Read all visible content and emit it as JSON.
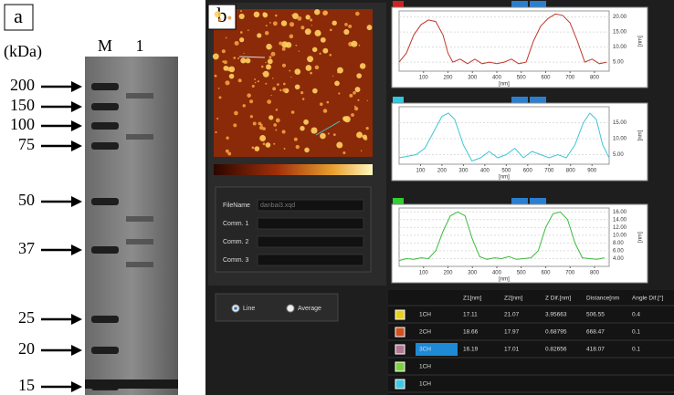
{
  "panel_a": {
    "label": "a",
    "unit": "(kDa)",
    "lanes": [
      "M",
      "1"
    ],
    "markers": [
      200,
      150,
      100,
      75,
      50,
      37,
      25,
      20,
      15
    ]
  },
  "panel_b": {
    "label": "b",
    "fields": [
      {
        "label": "FileName",
        "value": "danbai3.xqd"
      },
      {
        "label": "Comm. 1"
      },
      {
        "label": "Comm. 2"
      },
      {
        "label": "Comm. 3"
      }
    ],
    "options": [
      "Line",
      "Average"
    ],
    "profiles": [
      {
        "type": "line",
        "color": "#c0392b",
        "x_label": "[nm]",
        "y_label": "[nm]",
        "xlim": [
          0,
          860
        ],
        "ylim": [
          2,
          22
        ],
        "xticks": [
          100,
          200,
          300,
          400,
          500,
          600,
          700,
          800
        ],
        "yticks": [
          {
            "value": 5,
            "label": "5.00"
          },
          {
            "value": 10,
            "label": "10.00"
          },
          {
            "value": 15,
            "label": "15.00"
          },
          {
            "value": 20,
            "label": "20.00"
          }
        ],
        "x": [
          0,
          30,
          60,
          90,
          120,
          150,
          180,
          200,
          220,
          250,
          280,
          310,
          340,
          370,
          400,
          430,
          460,
          490,
          520,
          550,
          580,
          610,
          640,
          670,
          700,
          730,
          760,
          790,
          820,
          850
        ],
        "y": [
          5,
          8,
          14,
          17.5,
          19,
          18.5,
          14,
          8,
          5,
          6,
          4.5,
          6,
          4.5,
          5,
          4.5,
          5,
          6,
          4.5,
          5,
          12,
          17,
          19.5,
          21,
          20.5,
          18,
          12,
          5,
          6,
          4.5,
          5
        ]
      },
      {
        "type": "line",
        "color": "#3fc6d6",
        "x_label": "[nm]",
        "y_label": "[nm]",
        "xlim": [
          0,
          980
        ],
        "ylim": [
          2,
          20
        ],
        "xticks": [
          100,
          200,
          300,
          400,
          500,
          600,
          700,
          800,
          900
        ],
        "yticks": [
          {
            "value": 5,
            "label": "5.00"
          },
          {
            "value": 10,
            "label": "10.00"
          },
          {
            "value": 15,
            "label": "15.00"
          }
        ],
        "x": [
          0,
          40,
          80,
          120,
          160,
          200,
          230,
          260,
          300,
          340,
          380,
          420,
          460,
          500,
          540,
          580,
          620,
          660,
          700,
          740,
          780,
          820,
          860,
          890,
          920,
          950,
          980
        ],
        "y": [
          4,
          4.5,
          5,
          7,
          12,
          17,
          18,
          16,
          8,
          3,
          4,
          6,
          4,
          5,
          7,
          4,
          6,
          5,
          4,
          5,
          4,
          8,
          15,
          18,
          16,
          8,
          4
        ]
      },
      {
        "type": "line",
        "color": "#3cba3c",
        "x_label": "[nm]",
        "y_label": "[nm]",
        "xlim": [
          0,
          860
        ],
        "ylim": [
          2,
          17
        ],
        "xticks": [
          100,
          200,
          300,
          400,
          500,
          600,
          700,
          800
        ],
        "yticks": [
          {
            "value": 4,
            "label": "4.00"
          },
          {
            "value": 6,
            "label": "6.00"
          },
          {
            "value": 8,
            "label": "8.00"
          },
          {
            "value": 10,
            "label": "10.00"
          },
          {
            "value": 12,
            "label": "12.00"
          },
          {
            "value": 14,
            "label": "14.00"
          },
          {
            "value": 16,
            "label": "16.00"
          }
        ],
        "x": [
          0,
          30,
          60,
          90,
          120,
          150,
          180,
          210,
          240,
          270,
          300,
          330,
          360,
          390,
          420,
          450,
          480,
          510,
          540,
          570,
          600,
          630,
          660,
          690,
          720,
          750,
          780,
          810,
          840
        ],
        "y": [
          3.5,
          4,
          3.8,
          4.2,
          4,
          6,
          11,
          15,
          16,
          15,
          9,
          4.5,
          3.8,
          4.2,
          4,
          4.5,
          3.8,
          4,
          4.2,
          6,
          12,
          15.5,
          16,
          14,
          8,
          4.2,
          4,
          3.8,
          4.2
        ]
      }
    ],
    "table": {
      "columns": [
        "Z1[nm]",
        "Z2[nm]",
        "Z Dif.[nm]",
        "Distance[nm",
        "Angle Dif.[°]"
      ],
      "rows": [
        [
          "1CH",
          "17.11",
          "21.07",
          "3.95663",
          "506.55",
          "0.4"
        ],
        [
          "2CH",
          "18.66",
          "17.97",
          "0.68795",
          "668.47",
          "0.1"
        ],
        [
          "3CH",
          "16.19",
          "17.01",
          "0.82656",
          "418.07",
          "0.1"
        ],
        [
          "1CH"
        ],
        [
          "1CH"
        ]
      ]
    }
  }
}
